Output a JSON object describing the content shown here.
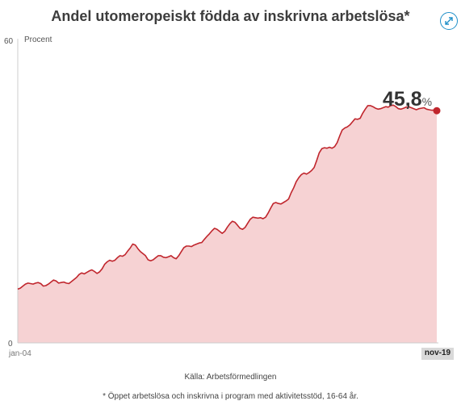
{
  "header": {
    "title": "Andel utomeropeiskt födda av inskrivna arbetslösa*"
  },
  "expand_icon": "expand-arrows-icon",
  "colors": {
    "line": "#c0262d",
    "area": "#f6d2d3",
    "accent": "#1f8fc9",
    "end_tick_bg": "#d9d9d9"
  },
  "chart_data": {
    "type": "area",
    "title": "Andel utomeropeiskt födda av inskrivna arbetslösa*",
    "ylabel": "Procent",
    "xlabel": "",
    "ylim": [
      0,
      60
    ],
    "y_ticks": [
      "60",
      "0"
    ],
    "x_tick_labels": [
      "jan-04",
      "nov-19"
    ],
    "x_start": "2004-01",
    "x_end": "2019-11",
    "grid": false,
    "series": [
      {
        "values": [
          10.6,
          10.8,
          11.2,
          11.6,
          11.8,
          11.7,
          11.6,
          11.8,
          11.9,
          11.7,
          11.2,
          11.3,
          11.6,
          12.0,
          12.4,
          12.2,
          11.8,
          11.9,
          12.0,
          11.8,
          11.7,
          12.1,
          12.5,
          12.9,
          13.5,
          13.8,
          13.6,
          13.9,
          14.2,
          14.4,
          14.1,
          13.7,
          14.0,
          14.6,
          15.5,
          16.0,
          16.3,
          16.1,
          16.3,
          16.8,
          17.2,
          17.1,
          17.4,
          18.1,
          18.7,
          19.5,
          19.3,
          18.6,
          18.0,
          17.6,
          17.2,
          16.4,
          16.2,
          16.4,
          16.8,
          17.2,
          17.2,
          16.9,
          16.8,
          17.0,
          17.2,
          16.8,
          16.6,
          17.2,
          18.0,
          18.8,
          19.1,
          19.1,
          19.0,
          19.3,
          19.5,
          19.7,
          19.8,
          20.4,
          21.0,
          21.5,
          22.1,
          22.6,
          22.4,
          22.0,
          21.6,
          22.0,
          22.8,
          23.5,
          24.0,
          23.8,
          23.2,
          22.6,
          22.4,
          22.8,
          23.6,
          24.4,
          24.8,
          24.7,
          24.6,
          24.7,
          24.5,
          24.8,
          25.6,
          26.6,
          27.5,
          27.7,
          27.5,
          27.4,
          27.7,
          28.0,
          28.4,
          29.6,
          30.6,
          31.8,
          32.6,
          33.2,
          33.5,
          33.3,
          33.6,
          34.0,
          34.6,
          36.0,
          37.5,
          38.3,
          38.5,
          38.4,
          38.6,
          38.4,
          38.7,
          39.5,
          40.8,
          42.0,
          42.4,
          42.6,
          43.0,
          43.6,
          44.2,
          44.1,
          44.3,
          45.3,
          46.1,
          46.8,
          46.8,
          46.6,
          46.3,
          46.1,
          46.2,
          46.4,
          46.6,
          46.5,
          46.8,
          46.9,
          46.6,
          46.2,
          46.1,
          46.3,
          46.5,
          46.6,
          46.4,
          46.2,
          46.0,
          46.2,
          46.3,
          46.4,
          46.1,
          46.0,
          45.9,
          45.9,
          45.8
        ]
      }
    ],
    "last_value_label": "45,8",
    "last_value_unit": "%"
  },
  "footer": {
    "source": "Källa: Arbetsförmedlingen",
    "note": "* Öppet arbetslösa och inskrivna i program med aktivitetsstöd, 16-64 år."
  }
}
